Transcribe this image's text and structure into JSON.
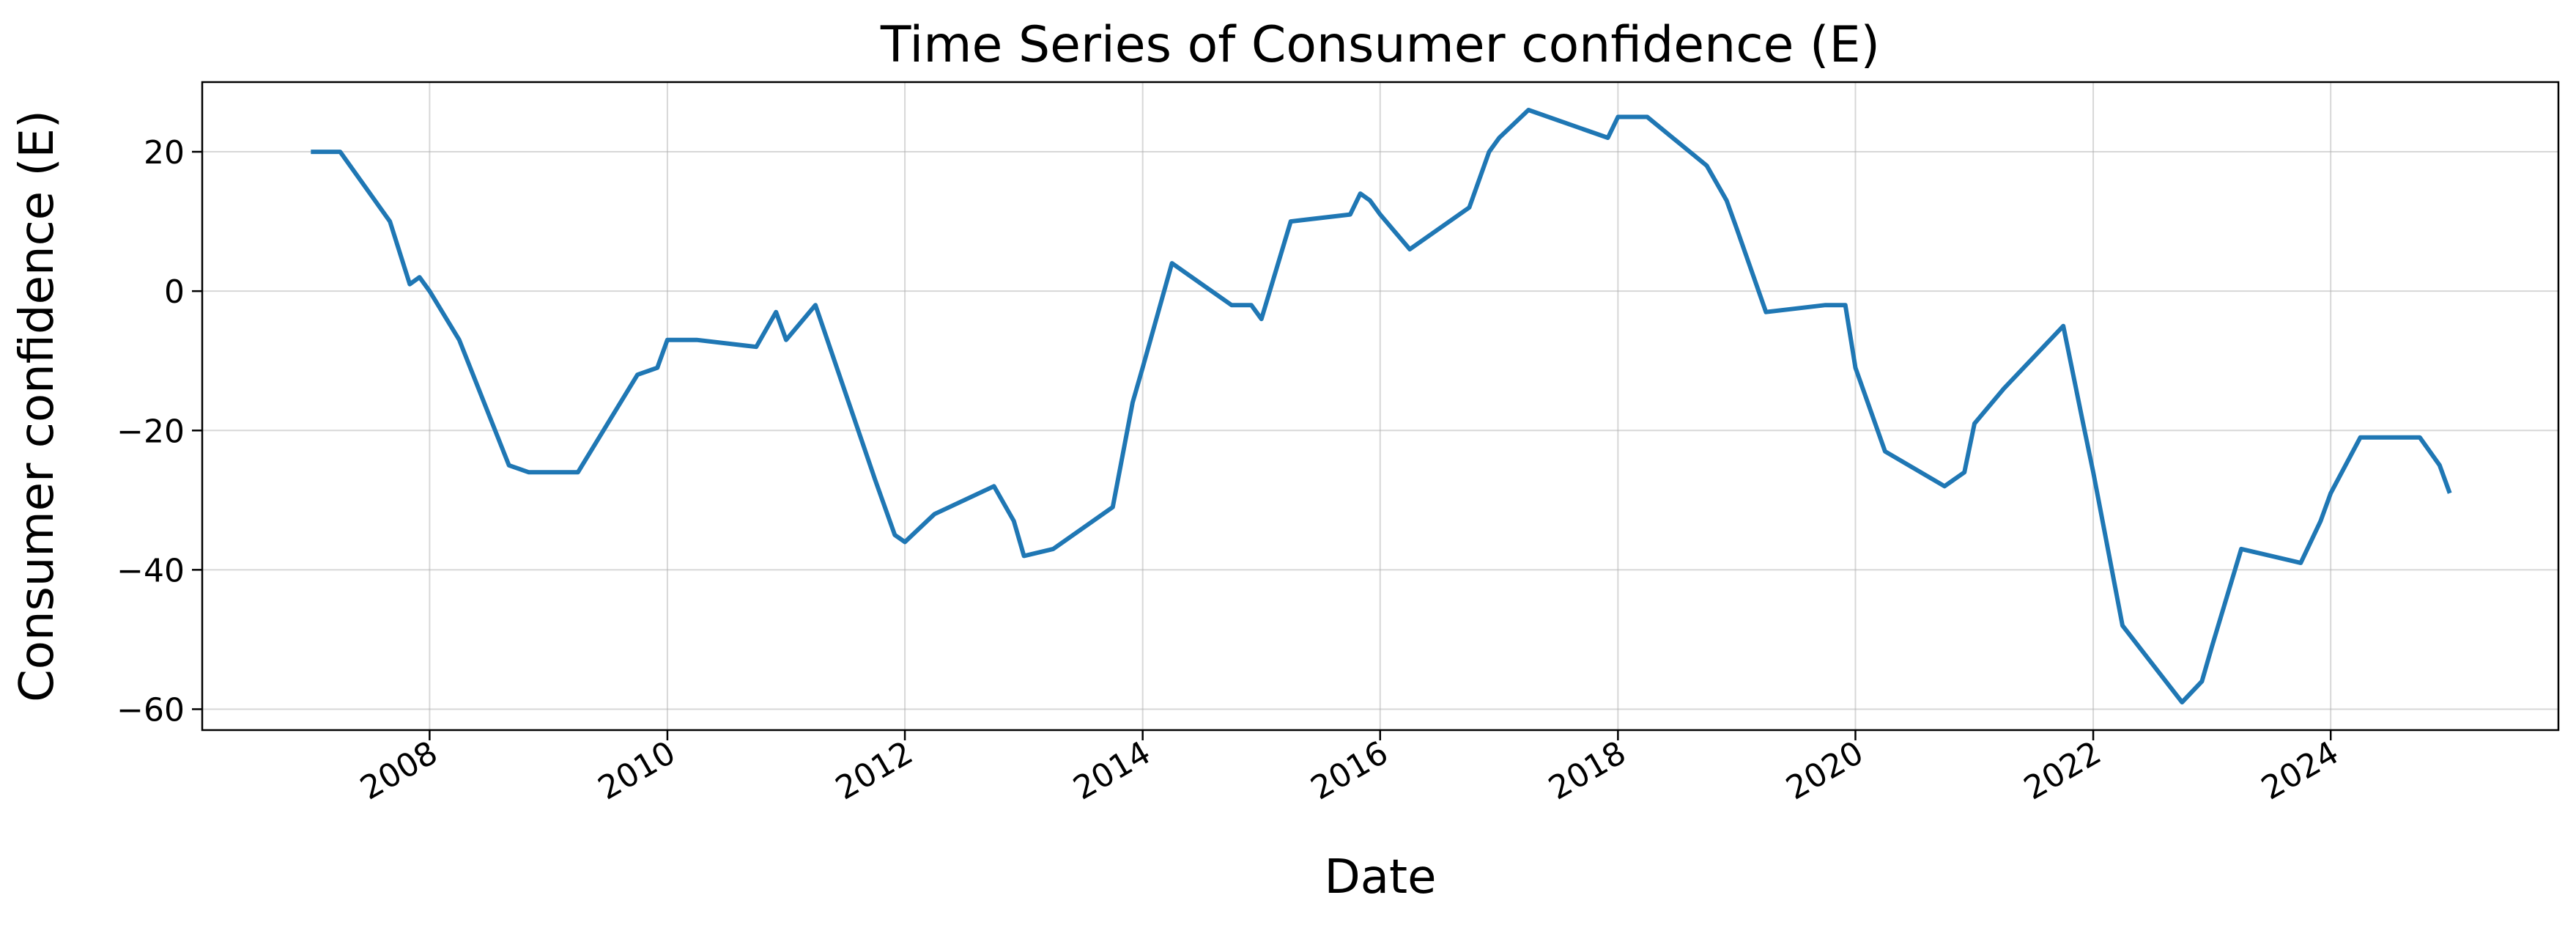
{
  "chart_data": {
    "type": "line",
    "title": "Time Series of Consumer confidence (E)",
    "xlabel": "Date",
    "ylabel": "Consumer confidence (E)",
    "xlim": [
      "2006-02-01",
      "2025-12-01"
    ],
    "ylim": [
      -63,
      30
    ],
    "x_ticks": [
      "2008-01-01",
      "2010-01-01",
      "2012-01-01",
      "2014-01-01",
      "2016-01-01",
      "2018-01-01",
      "2020-01-01",
      "2022-01-01",
      "2024-01-01"
    ],
    "x_tick_labels": [
      "2008",
      "2010",
      "2012",
      "2014",
      "2016",
      "2018",
      "2020",
      "2022",
      "2024"
    ],
    "y_ticks": [
      -60,
      -40,
      -20,
      0,
      20
    ],
    "y_tick_labels": [
      "−60",
      "−40",
      "−20",
      "0",
      "20"
    ],
    "grid": true,
    "color": "#1f77b4",
    "series": [
      {
        "x": [
          "2007-01-01",
          "2007-04-01",
          "2007-09-01",
          "2007-11-01",
          "2007-12-01",
          "2008-01-01",
          "2008-04-01",
          "2008-09-01",
          "2008-11-01",
          "2009-04-01",
          "2009-10-01",
          "2009-12-01",
          "2010-01-01",
          "2010-04-01",
          "2010-10-01",
          "2010-12-01",
          "2011-01-01",
          "2011-04-01",
          "2011-10-01",
          "2011-12-01",
          "2012-01-01",
          "2012-04-01",
          "2012-10-01",
          "2012-12-01",
          "2013-01-01",
          "2013-04-01",
          "2013-10-01",
          "2013-12-01",
          "2014-01-01",
          "2014-04-01",
          "2014-10-01",
          "2014-12-01",
          "2015-01-01",
          "2015-04-01",
          "2015-10-01",
          "2015-11-01",
          "2015-12-01",
          "2016-01-01",
          "2016-04-01",
          "2016-10-01",
          "2016-12-01",
          "2017-01-01",
          "2017-04-01",
          "2017-10-01",
          "2017-12-01",
          "2018-01-01",
          "2018-04-01",
          "2018-10-01",
          "2018-12-01",
          "2019-01-01",
          "2019-04-01",
          "2019-10-01",
          "2019-12-01",
          "2020-01-01",
          "2020-04-01",
          "2020-10-01",
          "2020-12-01",
          "2021-01-01",
          "2021-04-01",
          "2021-10-01",
          "2021-12-01",
          "2022-01-01",
          "2022-04-01",
          "2022-10-01",
          "2022-12-01",
          "2023-01-01",
          "2023-04-01",
          "2023-10-01",
          "2023-12-01",
          "2024-01-01",
          "2024-04-01",
          "2024-10-01",
          "2024-12-01",
          "2025-01-01"
        ],
        "y": [
          20,
          20,
          10,
          1,
          2,
          0,
          -7,
          -25,
          -26,
          -26,
          -12,
          -11,
          -7,
          -7,
          -8,
          -3,
          -7,
          -2,
          -27,
          -35,
          -36,
          -32,
          -28,
          -33,
          -38,
          -37,
          -31,
          -16,
          -11,
          4,
          -2,
          -2,
          -4,
          10,
          11,
          14,
          13,
          11,
          6,
          12,
          20,
          22,
          26,
          23,
          22,
          25,
          25,
          18,
          13,
          9,
          -3,
          -2,
          -2,
          -11,
          -23,
          -28,
          -26,
          -19,
          -14,
          -5,
          -19,
          -26,
          -48,
          -59,
          -56,
          -51,
          -37,
          -39,
          -33,
          -29,
          -21,
          -21,
          -25,
          -29
        ]
      }
    ]
  }
}
